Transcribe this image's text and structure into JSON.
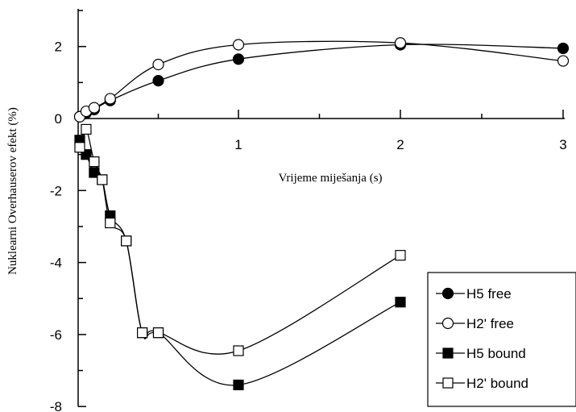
{
  "chart_data": {
    "type": "line",
    "xlabel": "Vrijeme miješanja (s)",
    "ylabel": "Nuklearni Overhauserov efekt (%)",
    "xlim": [
      0,
      3
    ],
    "ylim": [
      -8,
      3
    ],
    "x_ticks": [
      1,
      2,
      3
    ],
    "y_ticks": [
      2,
      0,
      -2,
      -4,
      -6,
      -8
    ],
    "grid": false,
    "legend_position": "bottom-right",
    "series": [
      {
        "name": "H5 free",
        "marker": "filled-circle",
        "color": "#000000",
        "x": [
          0.01,
          0.05,
          0.1,
          0.2,
          0.5,
          1,
          2,
          3
        ],
        "y": [
          0.05,
          0.15,
          0.25,
          0.5,
          1.05,
          1.65,
          2.05,
          1.95
        ]
      },
      {
        "name": "H2' free",
        "marker": "open-circle",
        "color": "#000000",
        "x": [
          0.01,
          0.05,
          0.1,
          0.2,
          0.5,
          1,
          2,
          3
        ],
        "y": [
          0.05,
          0.2,
          0.3,
          0.55,
          1.5,
          2.05,
          2.1,
          1.6
        ]
      },
      {
        "name": "H5 bound",
        "marker": "filled-square",
        "color": "#000000",
        "x": [
          0.01,
          0.05,
          0.1,
          0.15,
          0.2,
          0.3,
          0.4,
          0.5,
          1,
          2
        ],
        "y": [
          -0.6,
          -1.0,
          -1.5,
          -1.7,
          -2.7,
          -3.4,
          -5.95,
          -5.95,
          -7.4,
          -5.1
        ]
      },
      {
        "name": "H2' bound",
        "marker": "open-square",
        "color": "#000000",
        "x": [
          0.01,
          0.05,
          0.1,
          0.15,
          0.2,
          0.3,
          0.4,
          0.5,
          1,
          2
        ],
        "y": [
          -0.8,
          -0.3,
          -1.2,
          -1.7,
          -2.9,
          -3.4,
          -5.95,
          -5.95,
          -6.45,
          -3.8
        ]
      }
    ]
  }
}
